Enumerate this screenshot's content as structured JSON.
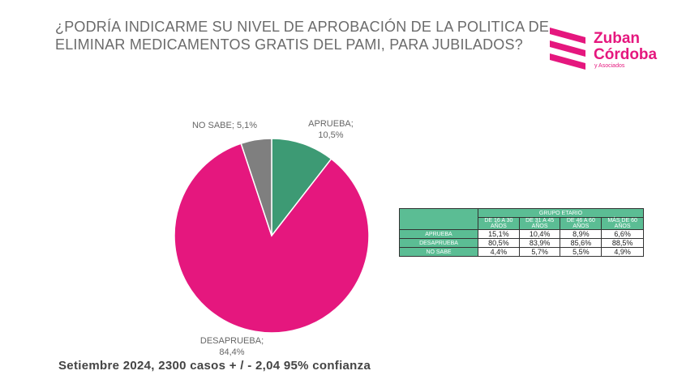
{
  "title": {
    "line1": "¿PODRÍA INDICARME SU NIVEL DE APROBACIÓN DE LA POLITICA DE",
    "line2": "ELIMINAR MEDICAMENTOS GRATIS DEL PAMI, PARA JUBILADOS?"
  },
  "logo": {
    "line1": "Zuban",
    "line2": "Córdoba",
    "sub": "y Asociados",
    "color": "#e5177e"
  },
  "chart_data": {
    "type": "pie",
    "slices": [
      {
        "label": "APRUEBA;",
        "value_text": "10,5%",
        "value": 10.5,
        "color": "#3d9a74"
      },
      {
        "label": "DESAPRUEBA;",
        "value_text": "84,4%",
        "value": 84.4,
        "color": "#e5177e"
      },
      {
        "label": "NO SABE;",
        "value_text": "5,1%",
        "value": 5.1,
        "color": "#7f7f7f"
      }
    ]
  },
  "labels": {
    "aprueba_1": "APRUEBA;",
    "aprueba_2": "10,5%",
    "desaprueba_1": "DESAPRUEBA;",
    "desaprueba_2": "84,4%",
    "nosabe": "NO SABE; 5,1%"
  },
  "table": {
    "group_header": "GRUPO ETARIO",
    "columns": [
      "DE 16 A 30 AÑOS",
      "DE 31 A 45 AÑOS",
      "DE 46 A 60 AÑOS",
      "MÁS DE 60 AÑOS"
    ],
    "rows": [
      {
        "label": "APRUEBA",
        "values": [
          "15,1%",
          "10,4%",
          "8,9%",
          "6,6%"
        ]
      },
      {
        "label": "DESAPRUEBA",
        "values": [
          "80,5%",
          "83,9%",
          "85,6%",
          "88,5%"
        ]
      },
      {
        "label": "NO SABE",
        "values": [
          "4,4%",
          "5,7%",
          "5,5%",
          "4,9%"
        ]
      }
    ]
  },
  "footer": "Setiembre 2024, 2300 casos + / - 2,04 95% confianza"
}
